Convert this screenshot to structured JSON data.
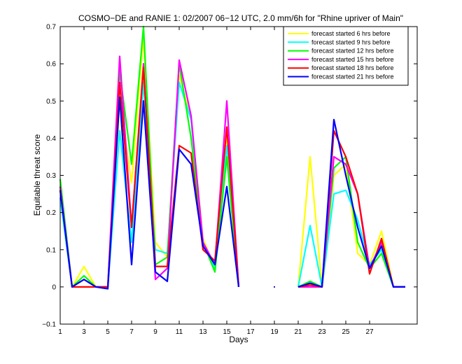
{
  "chart_data": {
    "type": "line",
    "title": "COSMO−DE and RANIE 1: 02/2007 06−12 UTC, 2.0 mm/6h for \"Rhine upriver of Main\"",
    "xlabel": "Days",
    "ylabel": "Equitable threat score",
    "xlim": [
      1,
      31
    ],
    "ylim": [
      -0.1,
      0.7
    ],
    "x_ticks": [
      1,
      3,
      5,
      7,
      9,
      11,
      13,
      15,
      17,
      19,
      21,
      23,
      25,
      27
    ],
    "y_ticks": [
      -0.1,
      0,
      0.1,
      0.2,
      0.3,
      0.4,
      0.5,
      0.6,
      0.7
    ],
    "y_tick_labels": [
      "−0.1",
      "0",
      "0.1",
      "0.2",
      "0.3",
      "0.4",
      "0.5",
      "0.6",
      "0.7"
    ],
    "grid": false,
    "legend_position": "top-right",
    "x": [
      1,
      2,
      3,
      4,
      5,
      6,
      7,
      8,
      9,
      10,
      11,
      12,
      13,
      14,
      15,
      16,
      17,
      18,
      19,
      20,
      21,
      22,
      23,
      24,
      25,
      26,
      27,
      28,
      29,
      30
    ],
    "series": [
      {
        "name": "forecast started 6 hrs before",
        "color": "#ffff00",
        "values": [
          0.27,
          0.0,
          0.055,
          0.0,
          0.0,
          0.5,
          0.28,
          0.67,
          0.12,
          0.08,
          0.57,
          0.45,
          0.13,
          0.05,
          0.4,
          0.0,
          null,
          null,
          0.0,
          null,
          0.0,
          0.35,
          0.0,
          0.3,
          0.33,
          0.09,
          0.06,
          0.15,
          0.0,
          0.0
        ]
      },
      {
        "name": "forecast started 9 hrs before",
        "color": "#00ffff",
        "values": [
          0.24,
          0.0,
          0.02,
          0.0,
          0.0,
          0.42,
          0.12,
          0.55,
          0.1,
          0.09,
          0.55,
          0.45,
          0.12,
          0.05,
          0.38,
          0.0,
          null,
          null,
          0.0,
          null,
          0.0,
          0.165,
          0.0,
          0.25,
          0.26,
          0.18,
          0.06,
          0.1,
          0.0,
          0.0
        ]
      },
      {
        "name": "forecast started 12 hrs before",
        "color": "#00ff00",
        "values": [
          0.29,
          0.0,
          0.03,
          0.0,
          0.0,
          0.58,
          0.33,
          0.7,
          0.06,
          0.08,
          0.6,
          0.4,
          0.12,
          0.04,
          0.35,
          0.0,
          null,
          null,
          0.0,
          null,
          0.0,
          0.015,
          0.0,
          0.32,
          0.35,
          0.12,
          0.05,
          0.09,
          0.0,
          0.0
        ]
      },
      {
        "name": "forecast started 15 hrs before",
        "color": "#ff00ff",
        "values": [
          0.27,
          0.0,
          0.02,
          0.0,
          0.0,
          0.62,
          0.16,
          0.6,
          0.02,
          0.05,
          0.61,
          0.46,
          0.12,
          0.06,
          0.5,
          0.0,
          null,
          null,
          0.0,
          null,
          0.0,
          0.0,
          0.0,
          0.35,
          0.33,
          0.25,
          0.05,
          0.12,
          0.0,
          0.0
        ]
      },
      {
        "name": "forecast started 18 hrs before",
        "color": "#ff0000",
        "values": [
          0.26,
          0.0,
          0.0,
          0.0,
          0.0,
          0.55,
          0.16,
          0.59,
          0.055,
          0.055,
          0.38,
          0.36,
          0.1,
          0.07,
          0.43,
          0.0,
          null,
          null,
          0.0,
          null,
          0.0,
          0.005,
          0.0,
          0.42,
          0.35,
          0.25,
          0.035,
          0.13,
          0.0,
          0.0
        ]
      },
      {
        "name": "forecast started 21 hrs before",
        "color": "#0000ff",
        "values": [
          0.26,
          0.0,
          0.02,
          0.0,
          -0.005,
          0.51,
          0.06,
          0.5,
          0.04,
          0.015,
          0.37,
          0.33,
          0.11,
          0.06,
          0.27,
          0.0,
          null,
          null,
          0.0,
          null,
          0.0,
          0.01,
          0.0,
          0.45,
          0.3,
          0.16,
          0.05,
          0.11,
          0.0,
          0.0
        ]
      }
    ]
  }
}
